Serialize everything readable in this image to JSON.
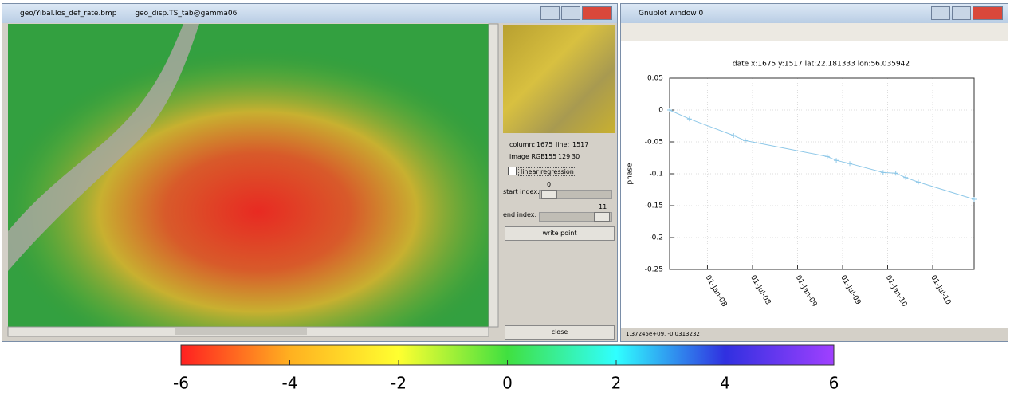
{
  "map_window": {
    "title": "geo/Yibal.los_def_rate.bmp",
    "subtitle": "geo_disp.TS_tab@gamma06"
  },
  "panel": {
    "column_label": "column:",
    "column": 1675,
    "line_label": "line:",
    "line": 1517,
    "rgb_label": "image RGB:",
    "rgb": [
      155,
      129,
      30
    ],
    "checkbox": "linear regression",
    "start_label": "start index:",
    "start_value": 0,
    "end_label": "end index:",
    "end_value": 11,
    "write_button": "write point",
    "close_button": "close"
  },
  "plot_window": {
    "title": "Gnuplot window 0",
    "status": "1.37245e+09, -0.0313232"
  },
  "chart_data": {
    "type": "line",
    "title": "date x:1675  y:1517  lat:22.181333  lon:56.035942",
    "y_label": "phase",
    "x": [
      2007.58,
      2007.8,
      2008.29,
      2008.42,
      2009.33,
      2009.43,
      2009.58,
      2009.95,
      2010.09,
      2010.2,
      2010.34,
      2010.96
    ],
    "series": [
      {
        "name": "phase",
        "color": "#8ec8e8",
        "values": [
          0,
          -0.014,
          -0.04,
          -0.048,
          -0.073,
          -0.079,
          -0.084,
          -0.098,
          -0.099,
          -0.106,
          -0.113,
          -0.14
        ]
      }
    ],
    "xlim": [
      2007.58,
      2010.96
    ],
    "xticks": [
      {
        "value": 2008,
        "label": "01-Jan-08"
      },
      {
        "value": 2008.5,
        "label": "01-Jul-08"
      },
      {
        "value": 2009,
        "label": "01-Jan-09"
      },
      {
        "value": 2009.5,
        "label": "01-Jul-09"
      },
      {
        "value": 2010,
        "label": "01-Jan-10"
      },
      {
        "value": 2010.5,
        "label": "01-Jul-10"
      }
    ],
    "ylim": [
      -0.25,
      0.05
    ],
    "yticks": [
      0.05,
      0,
      -0.05,
      -0.1,
      -0.15,
      -0.2,
      -0.25
    ],
    "grid": true
  },
  "colorbar": {
    "lim": [
      -6,
      6
    ],
    "ticks": [
      -6,
      -4,
      -2,
      0,
      2,
      4,
      6
    ],
    "colors": [
      "#ff2020",
      "#ffb020",
      "#ffff30",
      "#40e040",
      "#30ffff",
      "#3030e0",
      "#a040ff"
    ]
  }
}
